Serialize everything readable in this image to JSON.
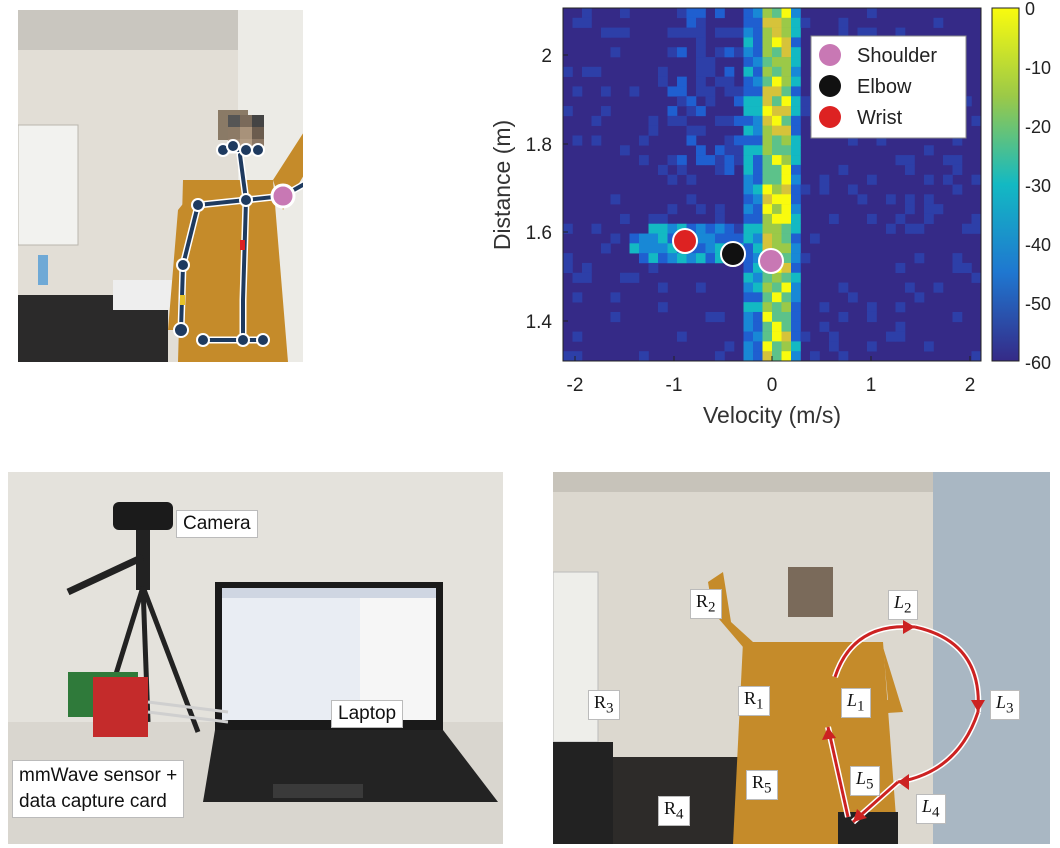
{
  "pose_photo": {
    "joint_colors": {
      "shoulder": "#c878b4",
      "elbow": "#111111",
      "wrist": "#dd2222",
      "skeleton": "#1e3a5f"
    }
  },
  "heatmap": {
    "xlabel": "Velocity (m/s)",
    "ylabel": "Distance (m)",
    "x_ticks": [
      "-2",
      "-1",
      "0",
      "1",
      "2"
    ],
    "y_ticks": [
      "2",
      "1.8",
      "1.6",
      "1.4"
    ],
    "colorbar_ticks": [
      "0",
      "-10",
      "-20",
      "-30",
      "-40",
      "-50",
      "-60"
    ],
    "legend": [
      {
        "label": "Shoulder",
        "color": "#c878b4"
      },
      {
        "label": "Elbow",
        "color": "#111111"
      },
      {
        "label": "Wrist",
        "color": "#dd2222"
      }
    ]
  },
  "setup_photo": {
    "labels": {
      "camera": "Camera",
      "laptop": "Laptop",
      "sensor_line1": "mmWave sensor +",
      "sensor_line2": "data capture card"
    }
  },
  "gesture_photo": {
    "right_labels": [
      {
        "id": "r1",
        "base": "R",
        "sub": "1"
      },
      {
        "id": "r2",
        "base": "R",
        "sub": "2"
      },
      {
        "id": "r3",
        "base": "R",
        "sub": "3"
      },
      {
        "id": "r4",
        "base": "R",
        "sub": "4"
      },
      {
        "id": "r5",
        "base": "R",
        "sub": "5"
      }
    ],
    "left_labels": [
      {
        "id": "l1",
        "base": "L",
        "sub": "1"
      },
      {
        "id": "l2",
        "base": "L",
        "sub": "2"
      },
      {
        "id": "l3",
        "base": "L",
        "sub": "3"
      },
      {
        "id": "l4",
        "base": "L",
        "sub": "4"
      },
      {
        "id": "l5",
        "base": "L",
        "sub": "5"
      }
    ],
    "arrow_color": "#cc2222"
  }
}
